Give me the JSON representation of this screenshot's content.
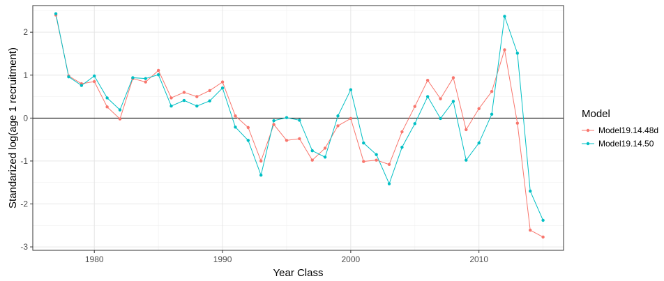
{
  "chart_data": {
    "type": "line",
    "xlabel": "Year Class",
    "ylabel": "Standarized log(age 1 recruitment)",
    "xlim": [
      1975.2,
      2016.6
    ],
    "ylim": [
      -3.08,
      2.62
    ],
    "x_ticks": [
      1980,
      1990,
      2000,
      2010
    ],
    "y_ticks": [
      -3,
      -2,
      -1,
      0,
      1,
      2
    ],
    "reference_line": 0,
    "grid": true,
    "legend": {
      "title": "Model",
      "position": "right"
    },
    "series": [
      {
        "name": "Model19.14.48d",
        "color": "#F8766D",
        "x": [
          1977,
          1978,
          1979,
          1980,
          1981,
          1982,
          1983,
          1984,
          1985,
          1986,
          1987,
          1988,
          1989,
          1990,
          1991,
          1992,
          1993,
          1994,
          1995,
          1996,
          1997,
          1998,
          1999,
          2000,
          2001,
          2002,
          2003,
          2004,
          2005,
          2006,
          2007,
          2008,
          2009,
          2010,
          2011,
          2012,
          2013,
          2014,
          2015
        ],
        "values": [
          2.4,
          0.98,
          0.8,
          0.85,
          0.26,
          -0.02,
          0.92,
          0.84,
          1.11,
          0.47,
          0.6,
          0.5,
          0.64,
          0.84,
          0.05,
          -0.22,
          -1.0,
          -0.15,
          -0.52,
          -0.48,
          -0.98,
          -0.7,
          -0.18,
          -0.01,
          -1.01,
          -0.98,
          -1.08,
          -0.32,
          0.27,
          0.88,
          0.45,
          0.94,
          -0.27,
          0.22,
          0.62,
          1.59,
          -0.12,
          -2.61,
          -2.77
        ]
      },
      {
        "name": "Model19.14.50",
        "color": "#00BFC4",
        "x": [
          1977,
          1978,
          1979,
          1980,
          1981,
          1982,
          1983,
          1984,
          1985,
          1986,
          1987,
          1988,
          1989,
          1990,
          1991,
          1992,
          1993,
          1994,
          1995,
          1996,
          1997,
          1998,
          1999,
          2000,
          2001,
          2002,
          2003,
          2004,
          2005,
          2006,
          2007,
          2008,
          2009,
          2010,
          2011,
          2012,
          2013,
          2014,
          2015
        ],
        "values": [
          2.43,
          0.96,
          0.76,
          0.98,
          0.47,
          0.19,
          0.94,
          0.92,
          1.01,
          0.28,
          0.41,
          0.28,
          0.4,
          0.7,
          -0.21,
          -0.52,
          -1.33,
          -0.06,
          0.01,
          -0.05,
          -0.76,
          -0.91,
          0.05,
          0.66,
          -0.58,
          -0.85,
          -1.53,
          -0.68,
          -0.13,
          0.5,
          -0.01,
          0.39,
          -0.98,
          -0.58,
          0.09,
          2.37,
          1.51,
          -1.7,
          -2.38
        ]
      }
    ]
  }
}
